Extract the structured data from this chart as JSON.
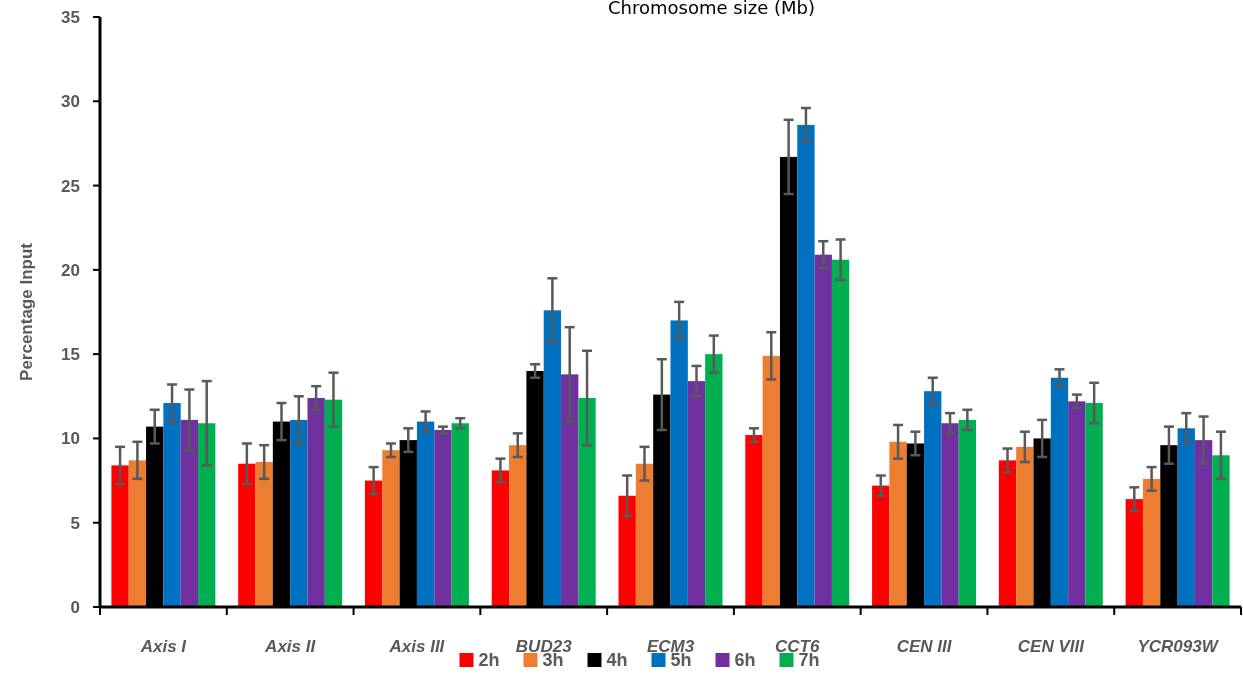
{
  "chart_data": {
    "type": "bar",
    "title": "Chromosome size (Mb)",
    "ylabel": "Percentage Input",
    "categories": [
      "Axis I",
      "Axis II",
      "Axis III",
      "BUD23",
      "ECM3",
      "CCT6",
      "CEN III",
      "CEN VIII",
      "YCR093W"
    ],
    "series": [
      {
        "name": "2h",
        "color": "#ff0000",
        "values": [
          8.4,
          8.5,
          7.5,
          8.1,
          6.6,
          10.2,
          7.2,
          8.7,
          6.4
        ],
        "errors": [
          1.1,
          1.2,
          0.8,
          0.7,
          1.2,
          0.4,
          0.6,
          0.7,
          0.7
        ]
      },
      {
        "name": "3h",
        "color": "#ed7d31",
        "values": [
          8.7,
          8.6,
          9.3,
          9.6,
          8.5,
          14.9,
          9.8,
          9.5,
          7.6
        ],
        "errors": [
          1.1,
          1.0,
          0.4,
          0.7,
          1.0,
          1.4,
          1.0,
          0.9,
          0.7
        ]
      },
      {
        "name": "4h",
        "color": "#000000",
        "values": [
          10.7,
          11.0,
          9.9,
          14.0,
          12.6,
          26.7,
          9.7,
          10.0,
          9.6
        ],
        "errors": [
          1.0,
          1.1,
          0.7,
          0.4,
          2.1,
          2.2,
          0.7,
          1.1,
          1.1
        ]
      },
      {
        "name": "5h",
        "color": "#0070c0",
        "values": [
          12.1,
          11.1,
          11.0,
          17.6,
          17.0,
          28.6,
          12.8,
          13.6,
          10.6
        ],
        "errors": [
          1.1,
          1.4,
          0.6,
          1.9,
          1.1,
          1.0,
          0.8,
          0.5,
          0.9
        ]
      },
      {
        "name": "6h",
        "color": "#7030a0",
        "values": [
          11.1,
          12.4,
          10.5,
          13.8,
          13.4,
          20.9,
          10.9,
          12.2,
          9.9
        ],
        "errors": [
          1.8,
          0.7,
          0.2,
          2.8,
          0.9,
          0.8,
          0.6,
          0.4,
          1.4
        ]
      },
      {
        "name": "7h",
        "color": "#00b050",
        "values": [
          10.9,
          12.3,
          10.9,
          12.4,
          15.0,
          20.6,
          11.1,
          12.1,
          9.0
        ],
        "errors": [
          2.5,
          1.6,
          0.3,
          2.8,
          1.1,
          1.2,
          0.6,
          1.2,
          1.4
        ]
      }
    ],
    "ylim": [
      0,
      35
    ],
    "yticks": [
      0,
      5,
      10,
      15,
      20,
      25,
      30,
      35
    ],
    "legend": "bottom"
  }
}
